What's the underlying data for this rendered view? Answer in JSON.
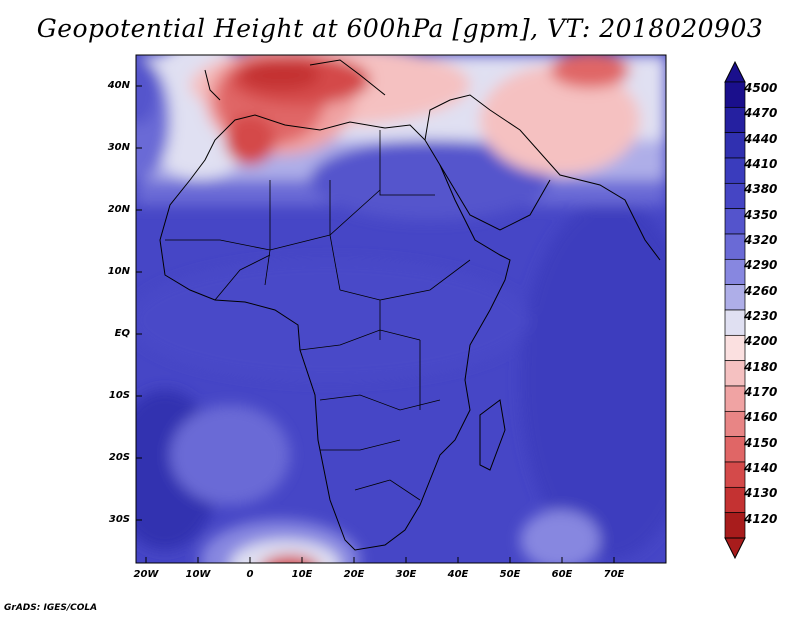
{
  "title": "Geopotential Height at 600hPa [gpm], VT: 2018020903",
  "credit": "GrADS: IGES/COLA",
  "map": {
    "region": "Africa",
    "lat_labels": [
      "40N",
      "30N",
      "20N",
      "10N",
      "EQ",
      "10S",
      "20S",
      "30S"
    ],
    "lon_labels": [
      "20W",
      "10W",
      "0",
      "10E",
      "20E",
      "30E",
      "40E",
      "50E",
      "60E",
      "70E"
    ]
  },
  "colorbar": {
    "levels": [
      "4500",
      "4470",
      "4440",
      "4410",
      "4380",
      "4350",
      "4320",
      "4290",
      "4260",
      "4230",
      "4200",
      "4180",
      "4170",
      "4160",
      "4150",
      "4140",
      "4130",
      "4120"
    ],
    "colors": [
      "#1a0f8c",
      "#2520a0",
      "#3030b0",
      "#3a3cbd",
      "#4545c4",
      "#5454cc",
      "#6a6ad6",
      "#8787e0",
      "#aeaee8",
      "#e0e0f2",
      "#fbe0e0",
      "#f5c1c1",
      "#f0a3a3",
      "#e88585",
      "#e06666",
      "#d44a4a",
      "#c43232",
      "#a81c1c"
    ]
  }
}
